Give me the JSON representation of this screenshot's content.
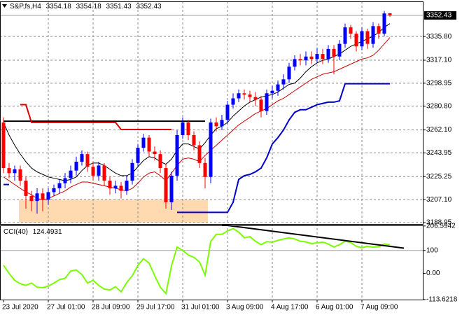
{
  "chart_data": [
    {
      "type": "candlestick",
      "title": "S&P,fs,H4",
      "categories": [
        "23 Jul 2020",
        null,
        null,
        null,
        null,
        null,
        null,
        null,
        "27 Jul 01:00",
        null,
        null,
        null,
        null,
        null,
        null,
        null,
        "28 Jul 09:00",
        null,
        null,
        null,
        null,
        null,
        null,
        null,
        "29 Jul 17:00",
        null,
        null,
        null,
        null,
        null,
        null,
        null,
        "31 Jul 01:00",
        null,
        null,
        null,
        null,
        null,
        null,
        null,
        "3 Aug 09:00",
        null,
        null,
        null,
        null,
        null,
        null,
        null,
        "4 Aug 17:00",
        null,
        null,
        null,
        null,
        null,
        null,
        null,
        "6 Aug 01:00",
        null,
        null,
        null,
        null,
        null,
        null,
        null,
        "7 Aug 09:00",
        null,
        null,
        null,
        null,
        null
      ],
      "open": [
        3268,
        3232,
        3228,
        3231,
        3222,
        3210,
        3206,
        3212,
        3207,
        3213,
        3216,
        3220,
        3224,
        3230,
        3237,
        3243,
        3233,
        3226,
        3234,
        3222,
        3216,
        3218,
        3214,
        3222,
        3236,
        3248,
        3256,
        3245,
        3243,
        3232,
        3205,
        3226,
        3258,
        3268,
        3258,
        3250,
        3236,
        3225,
        3268,
        3265,
        3270,
        3282,
        3287,
        3291,
        3290,
        3288,
        3286,
        3277,
        3291,
        3293,
        3298,
        3302,
        3312,
        3318,
        3317,
        3320,
        3318,
        3322,
        3318,
        3326,
        3320,
        3330,
        3343,
        3338,
        3328,
        3340,
        3330,
        3344,
        3338,
        3354.18
      ],
      "high": [
        3272,
        3236,
        3234,
        3234,
        3225,
        3214,
        3216,
        3216,
        3216,
        3219,
        3223,
        3228,
        3234,
        3241,
        3246,
        3245,
        3237,
        3237,
        3236,
        3225,
        3222,
        3221,
        3226,
        3239,
        3251,
        3259,
        3258,
        3249,
        3246,
        3235,
        3229,
        3262,
        3272,
        3270,
        3261,
        3253,
        3240,
        3271,
        3272,
        3274,
        3285,
        3291,
        3294,
        3294,
        3293,
        3292,
        3289,
        3294,
        3297,
        3301,
        3306,
        3315,
        3321,
        3322,
        3324,
        3324,
        3327,
        3326,
        3329,
        3329,
        3333,
        3346,
        3345,
        3340,
        3343,
        3342,
        3347,
        3346,
        3356,
        3354.18
      ],
      "low": [
        3228,
        3224,
        3222,
        3218,
        3200,
        3198,
        3196,
        3198,
        3203,
        3210,
        3212,
        3216,
        3220,
        3226,
        3234,
        3229,
        3222,
        3222,
        3218,
        3211,
        3212,
        3208,
        3211,
        3219,
        3233,
        3245,
        3241,
        3238,
        3228,
        3200,
        3199,
        3222,
        3255,
        3254,
        3246,
        3232,
        3216,
        3220,
        3261,
        3262,
        3267,
        3279,
        3284,
        3286,
        3284,
        3281,
        3272,
        3274,
        3287,
        3289,
        3294,
        3299,
        3309,
        3313,
        3313,
        3314,
        3315,
        3314,
        3315,
        3306,
        3317,
        3327,
        3334,
        3324,
        3325,
        3326,
        3327,
        3334,
        3336,
        3351.43
      ],
      "close": [
        3232,
        3228,
        3231,
        3222,
        3210,
        3206,
        3212,
        3207,
        3213,
        3216,
        3220,
        3224,
        3230,
        3237,
        3243,
        3233,
        3226,
        3234,
        3222,
        3216,
        3218,
        3214,
        3222,
        3236,
        3248,
        3256,
        3245,
        3243,
        3232,
        3205,
        3226,
        3258,
        3268,
        3258,
        3250,
        3236,
        3225,
        3268,
        3265,
        3270,
        3282,
        3287,
        3291,
        3290,
        3288,
        3286,
        3277,
        3291,
        3293,
        3298,
        3302,
        3312,
        3318,
        3317,
        3320,
        3318,
        3322,
        3318,
        3326,
        3320,
        3330,
        3343,
        3338,
        3328,
        3340,
        3330,
        3344,
        3338,
        3354,
        3352.43
      ],
      "up_color": "#0000ff",
      "down_color": "#ff0000",
      "lines": [
        {
          "color": "#000000",
          "width": 1,
          "values": [
            3268,
            3258,
            3250,
            3243,
            3237,
            3232,
            3229,
            3227,
            3225,
            3224,
            3223,
            3222,
            3223,
            3225,
            3230,
            3234,
            3236,
            3236,
            3234,
            3231,
            3228,
            3226,
            3226,
            3228,
            3233,
            3238,
            3241,
            3240,
            3237,
            3235,
            3239,
            3246,
            3251,
            3251,
            3249,
            3247,
            3252,
            3258,
            3263,
            3265,
            3268,
            3273,
            3277,
            3281,
            3284,
            3286,
            3288,
            3289,
            3290,
            3292,
            3295,
            3298,
            3299,
            3303,
            3308,
            3312,
            3315,
            3317,
            3318,
            3320,
            3322,
            3325,
            3328,
            3330,
            3332,
            3334,
            3336,
            3339,
            3343,
            3346
          ]
        },
        {
          "color": "#cc0000",
          "width": 1,
          "values": [
            3225,
            3222,
            3219,
            3216,
            3213,
            3211,
            3208,
            3207,
            3208,
            3210,
            3212,
            3214,
            3217,
            3219,
            3221,
            3221,
            3220,
            3219,
            3218,
            3217,
            3216,
            3215,
            3214,
            3216,
            3220,
            3225,
            3228,
            3229,
            3226,
            3222,
            3228,
            3234,
            3239,
            3240,
            3239,
            3237,
            3242,
            3246,
            3250,
            3254,
            3258,
            3262,
            3266,
            3269,
            3272,
            3275,
            3277,
            3279,
            3282,
            3285,
            3287,
            3290,
            3293,
            3296,
            3299,
            3302,
            3304,
            3306,
            3307,
            3308,
            3310,
            3312,
            3314,
            3316,
            3318,
            3319,
            3321,
            3325,
            3330,
            3335
          ]
        },
        {
          "color": "#0000cc",
          "width": 2,
          "values": [
            3219,
            3219,
            null,
            null,
            null,
            null,
            null,
            null,
            null,
            null,
            null,
            null,
            null,
            null,
            null,
            null,
            null,
            null,
            null,
            null,
            null,
            null,
            null,
            null,
            null,
            null,
            null,
            null,
            null,
            null,
            null,
            3197,
            3197,
            3197,
            3197,
            3197,
            3197,
            3197,
            3197,
            3197,
            3197,
            3205,
            3223,
            3226,
            3227,
            3229,
            3232,
            3240,
            3251,
            3256,
            3262,
            3270,
            3276,
            3278,
            3278,
            3280,
            3282,
            3283,
            3284,
            3284,
            3285,
            3298.5,
            3298.5,
            3298.5,
            3298.5,
            3298.5,
            3298.5,
            3298.5,
            3298.5,
            3298.5
          ]
        },
        {
          "color": "#000000",
          "width": 2,
          "values": [
            3269,
            3269,
            3269,
            3269,
            3269,
            3269,
            3269,
            3269,
            3269,
            3269,
            3269,
            3269,
            3269,
            3269,
            3269,
            3269,
            3269,
            3269,
            3269,
            3269,
            3269,
            3269,
            3269,
            3269,
            3269,
            3269,
            3269,
            3269,
            3269,
            3269,
            3269,
            3269,
            3269,
            3269,
            3269,
            3269,
            3269,
            null,
            null,
            null,
            null,
            null,
            null,
            null,
            null,
            null,
            null,
            null,
            null,
            null,
            null,
            null,
            null,
            null,
            null,
            null,
            null,
            null,
            null,
            null,
            null,
            null,
            null,
            null,
            null,
            null,
            null,
            null,
            null,
            null
          ]
        },
        {
          "color": "#dd0000",
          "width": 2,
          "values": [
            null,
            null,
            null,
            3282,
            3282,
            3268,
            3268,
            3268,
            3268,
            3268,
            3268,
            3268,
            3268,
            3268,
            3268,
            3268,
            3268,
            3268,
            3268,
            3268,
            3268,
            3262.4,
            3262.4,
            3262.4,
            3262.4,
            3262.4,
            3262.4,
            3262.4,
            3262.4,
            3262.4,
            3262.4,
            null,
            null,
            null,
            null,
            null,
            null,
            null,
            null,
            null,
            null,
            null,
            null,
            null,
            null,
            null,
            null,
            null,
            null,
            null,
            null,
            null,
            null,
            null,
            null,
            null,
            null,
            null,
            null,
            null,
            null,
            null,
            null,
            null,
            null,
            null,
            null,
            null,
            null,
            null
          ]
        }
      ],
      "zone": {
        "x": [
          2.75,
          36.5
        ],
        "y": [
          3188.95,
          3207.1
        ],
        "color": "#ffdab0"
      },
      "ylim": [
        3187.85,
        3363.5
      ],
      "yticks": [
        {
          "value": 3335.8,
          "label": "3335.80"
        },
        {
          "value": 3317.1,
          "label": "3317.10"
        },
        3298.95,
        {
          "value": 3280.8,
          "label": "3280.80"
        },
        {
          "value": 3262.1,
          "label": "3262.10"
        },
        3243.95,
        3225.25,
        {
          "value": 3207.1,
          "label": "3207.10"
        },
        3188.95
      ],
      "grid": true
    },
    {
      "type": "line",
      "title": "CCI(40)",
      "color": "#7cfc00",
      "values": [
        36,
        0,
        -30,
        -45,
        -52,
        -42,
        -60,
        -62,
        -55,
        -42,
        -27,
        -21,
        10,
        15,
        -5,
        -42,
        -30,
        -52,
        -68,
        -72,
        -58,
        -80,
        -40,
        -10,
        35,
        64,
        45,
        -10,
        -60,
        -88,
        33,
        115,
        100,
        80,
        70,
        50,
        -8,
        139,
        170,
        170,
        185,
        195,
        180,
        155,
        160,
        140,
        125,
        138,
        136,
        144,
        150,
        155,
        150,
        140,
        137,
        130,
        133,
        136,
        128,
        115,
        125,
        140,
        135,
        118,
        112,
        118,
        114,
        116,
        128,
        124.4931
      ],
      "trendline": {
        "x": [
          39,
          71.5
        ],
        "values": [
          212,
          110
        ],
        "color": "#000000"
      },
      "ylim": [
        -114,
        209
      ],
      "yticks": [
        206.5942,
        100,
        {
          "value": 0,
          "label": "0.00"
        },
        -113.6218
      ],
      "level_lines": [
        100
      ]
    }
  ]
}
